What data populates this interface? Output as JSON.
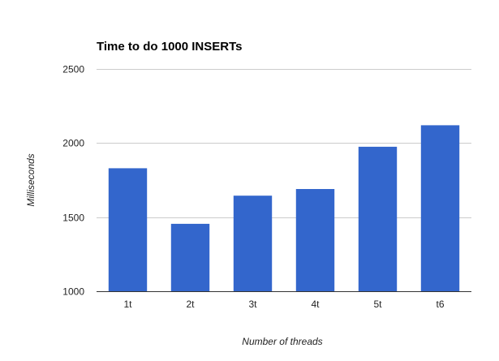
{
  "chart_data": {
    "type": "bar",
    "title": "Time to do 1000 INSERTs",
    "xlabel": "Number of threads",
    "ylabel": "Milliseconds",
    "categories": [
      "1t",
      "2t",
      "3t",
      "4t",
      "5t",
      "t6"
    ],
    "values": [
      1830,
      1455,
      1645,
      1690,
      1975,
      2120
    ],
    "ylim": [
      1000,
      2500
    ],
    "yticks": [
      1000,
      1500,
      2000,
      2500
    ],
    "grid": true,
    "legend": "none",
    "colors": {
      "bar": "#3366cc",
      "gridline": "#cccccc",
      "baseline": "#333333"
    }
  }
}
